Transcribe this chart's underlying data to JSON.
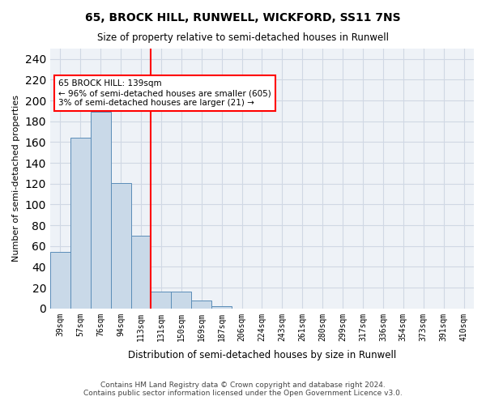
{
  "title1": "65, BROCK HILL, RUNWELL, WICKFORD, SS11 7NS",
  "title2": "Size of property relative to semi-detached houses in Runwell",
  "xlabel": "Distribution of semi-detached houses by size in Runwell",
  "ylabel": "Number of semi-detached properties",
  "footer1": "Contains HM Land Registry data © Crown copyright and database right 2024.",
  "footer2": "Contains public sector information licensed under the Open Government Licence v3.0.",
  "bin_labels": [
    "39sqm",
    "57sqm",
    "76sqm",
    "94sqm",
    "113sqm",
    "131sqm",
    "150sqm",
    "169sqm",
    "187sqm",
    "206sqm",
    "224sqm",
    "243sqm",
    "261sqm",
    "280sqm",
    "299sqm",
    "317sqm",
    "336sqm",
    "354sqm",
    "373sqm",
    "391sqm",
    "410sqm"
  ],
  "bar_values": [
    54,
    164,
    189,
    121,
    70,
    16,
    16,
    8,
    2,
    0,
    0,
    0,
    0,
    0,
    0,
    0,
    0,
    0,
    0,
    0,
    0
  ],
  "bar_color": "#c9d9e8",
  "bar_edge_color": "#5b8db8",
  "grid_color": "#d0d8e4",
  "background_color": "#eef2f7",
  "vline_x_index": 5,
  "vline_color": "red",
  "annotation_text": "65 BROCK HILL: 139sqm\n← 96% of semi-detached houses are smaller (605)\n3% of semi-detached houses are larger (21) →",
  "annotation_box_color": "white",
  "annotation_box_edge_color": "red",
  "ylim": [
    0,
    250
  ],
  "yticks": [
    0,
    20,
    40,
    60,
    80,
    100,
    120,
    140,
    160,
    180,
    200,
    220,
    240
  ]
}
